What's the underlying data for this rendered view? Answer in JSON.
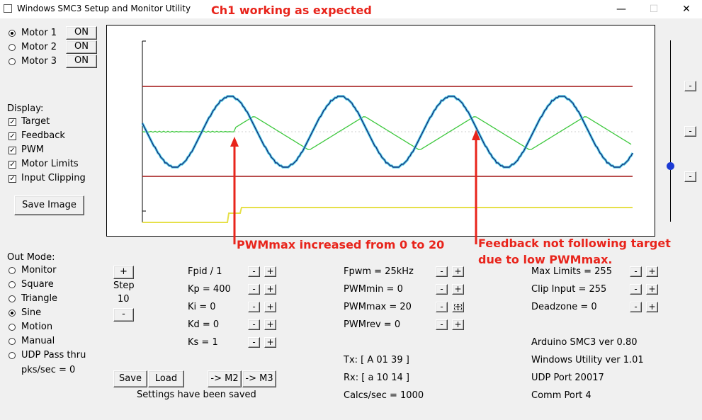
{
  "window": {
    "title": "Windows SMC3 Setup and Monitor Utility",
    "annotation_top": "Ch1 working as expected",
    "minimize_icon": "—",
    "maximize_icon": "☐",
    "close_icon": "✕"
  },
  "motors": [
    {
      "label": "Motor 1",
      "button": "ON",
      "selected": true
    },
    {
      "label": "Motor 2",
      "button": "ON",
      "selected": false
    },
    {
      "label": "Motor 3",
      "button": "ON",
      "selected": false
    }
  ],
  "display": {
    "heading": "Display:",
    "options": [
      {
        "label": "Target",
        "checked": true
      },
      {
        "label": "Feedback",
        "checked": true
      },
      {
        "label": "PWM",
        "checked": true
      },
      {
        "label": "Motor Limits",
        "checked": true
      },
      {
        "label": "Input Clipping",
        "checked": true
      }
    ],
    "save_image": "Save Image"
  },
  "out_mode": {
    "heading": "Out Mode:",
    "options": [
      {
        "label": "Monitor",
        "selected": false
      },
      {
        "label": "Square",
        "selected": false
      },
      {
        "label": "Triangle",
        "selected": false
      },
      {
        "label": "Sine",
        "selected": true
      },
      {
        "label": "Motion",
        "selected": false
      },
      {
        "label": "Manual",
        "selected": false
      },
      {
        "label": "UDP Pass thru",
        "selected": false
      }
    ],
    "pks": "pks/sec = 0"
  },
  "step": {
    "plus": "+",
    "label": "Step",
    "value": "10",
    "minus": "-"
  },
  "pid_params": [
    {
      "label": "Fpid / 1"
    },
    {
      "label": "Kp = 400"
    },
    {
      "label": "Ki = 0"
    },
    {
      "label": "Kd = 0"
    },
    {
      "label": "Ks = 1"
    }
  ],
  "pwm_params": [
    {
      "label": "Fpwm = 25kHz"
    },
    {
      "label": "PWMmin = 0"
    },
    {
      "label": "PWMmax = 20"
    },
    {
      "label": "PWMrev = 0"
    }
  ],
  "limit_params": [
    {
      "label": "Max Limits = 255"
    },
    {
      "label": "Clip Input = 255"
    },
    {
      "label": "Deadzone = 0"
    }
  ],
  "stepper": {
    "minus": "-",
    "plus": "+"
  },
  "comms": {
    "tx": "Tx: [ A 01 39 ]",
    "rx": "Rx: [ a 10 14 ]",
    "calcs": "Calcs/sec = 1000"
  },
  "info": {
    "arduino": "Arduino SMC3 ver 0.80",
    "utility": "Windows Utility ver 1.01",
    "udp": "UDP Port 20017",
    "comm": "Comm Port 4"
  },
  "actions": {
    "save": "Save",
    "load": "Load",
    "to_m2": "-> M2",
    "to_m3": "-> M3",
    "status": "Settings have been saved"
  },
  "annotations": {
    "pwmmax": "PWMmax increased from 0 to 20",
    "feedback_line1": "Feedback not following target",
    "feedback_line2": "due to low PWMmax."
  },
  "side_slider_buttons": [
    "-",
    "-",
    "-"
  ],
  "colors": {
    "target": "#1b1b6e",
    "target_glow": "#4fd0e8",
    "feedback": "#3ec83e",
    "pwm": "#e6e04a",
    "limits": "#a01010",
    "annotation": "#e8241b",
    "slider_thumb": "#1c3bd4"
  }
}
